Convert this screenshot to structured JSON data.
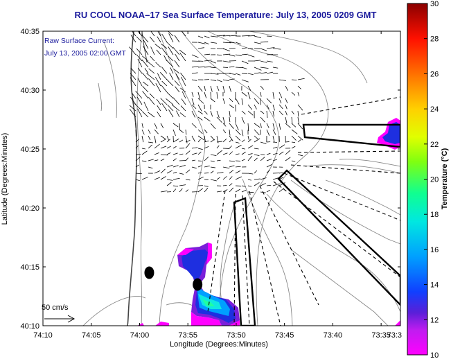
{
  "title": "RU COOL  NOAA–17  Sea Surface Temperature:  July 13, 2005 0209 GMT",
  "legend": {
    "line1": "Raw Surface Current:",
    "line2": "July 13, 2005 02:00 GMT",
    "scale_label": "50 cm/s"
  },
  "chart_data": {
    "type": "map",
    "xlabel": "Longitude (Degrees:Minutes)",
    "ylabel": "Latitude (Degrees:Minutes)",
    "xlim": [
      -74.1667,
      -73.55
    ],
    "ylim": [
      40.1667,
      40.5833
    ],
    "x_ticks": [
      {
        "label": "74:10",
        "value": -74.1667
      },
      {
        "label": "74:05",
        "value": -74.0833
      },
      {
        "label": "74:00",
        "value": -74.0
      },
      {
        "label": "73:55",
        "value": -73.9167
      },
      {
        "label": "73:50",
        "value": -73.8333
      },
      {
        "label": "73:45",
        "value": -73.75
      },
      {
        "label": "73:40",
        "value": -73.6667
      },
      {
        "label": "73:35",
        "value": -73.5833
      },
      {
        "label": "73:3",
        "value": -73.55
      }
    ],
    "y_ticks": [
      {
        "label": "40:10",
        "value": 40.1667
      },
      {
        "label": "40:15",
        "value": 40.25
      },
      {
        "label": "40:20",
        "value": 40.3333
      },
      {
        "label": "40:25",
        "value": 40.4167
      },
      {
        "label": "40:30",
        "value": 40.5
      },
      {
        "label": "40:35",
        "value": 40.5833
      }
    ],
    "colorbar": {
      "label": "Temperature (°C)",
      "min": 10,
      "max": 30,
      "ticks": [
        10,
        12,
        14,
        16,
        18,
        20,
        22,
        24,
        26,
        28,
        30
      ]
    },
    "markers": [
      {
        "lon": -73.9833,
        "lat": 40.2417
      },
      {
        "lon": -73.9,
        "lat": 40.225
      }
    ]
  }
}
